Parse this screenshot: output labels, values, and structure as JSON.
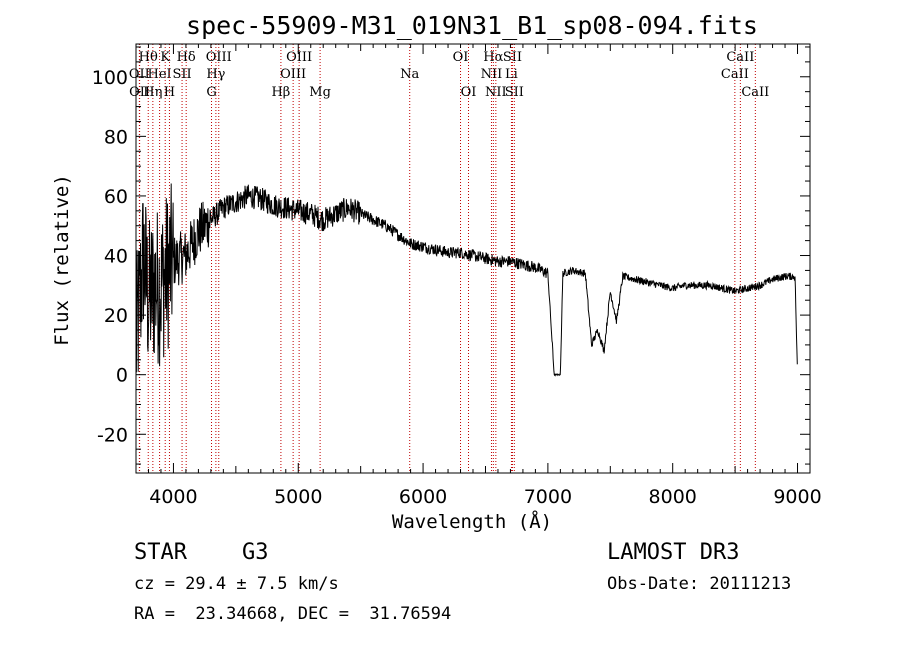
{
  "chart_data": {
    "type": "line",
    "title": "spec-55909-M31_019N31_B1_sp08-094.fits",
    "xlabel": "Wavelength (Å)",
    "ylabel": "Flux (relative)",
    "xlim": [
      3700,
      9100
    ],
    "ylim": [
      -33,
      111
    ],
    "xticks": [
      4000,
      5000,
      6000,
      7000,
      8000,
      9000
    ],
    "yticks": [
      -20,
      0,
      20,
      40,
      60,
      80,
      100
    ],
    "colors": {
      "spectrum": "#000000",
      "lines": "#c00000"
    },
    "spectrum_anchors": [
      [
        3700,
        10
      ],
      [
        3760,
        40
      ],
      [
        3800,
        25
      ],
      [
        3850,
        30
      ],
      [
        3900,
        30
      ],
      [
        3950,
        35
      ],
      [
        4000,
        38
      ],
      [
        4100,
        40
      ],
      [
        4200,
        48
      ],
      [
        4300,
        52
      ],
      [
        4400,
        56
      ],
      [
        4500,
        58
      ],
      [
        4600,
        60
      ],
      [
        4700,
        59
      ],
      [
        4800,
        57
      ],
      [
        4900,
        56
      ],
      [
        5000,
        55
      ],
      [
        5100,
        54
      ],
      [
        5200,
        52
      ],
      [
        5300,
        54
      ],
      [
        5400,
        56
      ],
      [
        5500,
        54
      ],
      [
        5600,
        52
      ],
      [
        5700,
        50
      ],
      [
        5800,
        47
      ],
      [
        5900,
        44
      ],
      [
        6000,
        43
      ],
      [
        6100,
        42
      ],
      [
        6200,
        41
      ],
      [
        6300,
        41
      ],
      [
        6400,
        40
      ],
      [
        6500,
        39
      ],
      [
        6600,
        38
      ],
      [
        6700,
        38
      ],
      [
        6800,
        37
      ],
      [
        6900,
        36
      ],
      [
        7000,
        34
      ],
      [
        7050,
        0
      ],
      [
        7100,
        0
      ],
      [
        7120,
        34
      ],
      [
        7200,
        35
      ],
      [
        7300,
        34
      ],
      [
        7350,
        10
      ],
      [
        7400,
        15
      ],
      [
        7450,
        8
      ],
      [
        7500,
        28
      ],
      [
        7550,
        18
      ],
      [
        7600,
        33
      ],
      [
        7700,
        32
      ],
      [
        7800,
        31
      ],
      [
        7900,
        30
      ],
      [
        8000,
        29
      ],
      [
        8100,
        30
      ],
      [
        8200,
        30
      ],
      [
        8300,
        30
      ],
      [
        8400,
        29
      ],
      [
        8500,
        28
      ],
      [
        8600,
        29
      ],
      [
        8700,
        30
      ],
      [
        8800,
        32
      ],
      [
        8900,
        33
      ],
      [
        8980,
        33
      ],
      [
        9000,
        0
      ]
    ],
    "spectral_lines": [
      {
        "label": "Hθ",
        "wavelength": 3798,
        "row": 1
      },
      {
        "label": "K",
        "wavelength": 3934,
        "row": 1
      },
      {
        "label": "Hδ",
        "wavelength": 4102,
        "row": 1
      },
      {
        "label": "OIII",
        "wavelength": 4363,
        "row": 1
      },
      {
        "label": "OIII",
        "wavelength": 5007,
        "row": 1
      },
      {
        "label": "OI",
        "wavelength": 6300,
        "row": 1
      },
      {
        "label": "Hα",
        "wavelength": 6563,
        "row": 1
      },
      {
        "label": "SII",
        "wavelength": 6716,
        "row": 1
      },
      {
        "label": "CaII",
        "wavelength": 8542,
        "row": 1
      },
      {
        "label": "OII",
        "wavelength": 3727,
        "row": 2
      },
      {
        "label": "HeI",
        "wavelength": 3889,
        "row": 2
      },
      {
        "label": "SII",
        "wavelength": 4069,
        "row": 2
      },
      {
        "label": "Hγ",
        "wavelength": 4340,
        "row": 2
      },
      {
        "label": "OIII",
        "wavelength": 4959,
        "row": 2
      },
      {
        "label": "Na",
        "wavelength": 5893,
        "row": 2
      },
      {
        "label": "NII",
        "wavelength": 6548,
        "row": 2
      },
      {
        "label": "Li",
        "wavelength": 6708,
        "row": 2
      },
      {
        "label": "CaII",
        "wavelength": 8498,
        "row": 2
      },
      {
        "label": "OII",
        "wavelength": 3729,
        "row": 3
      },
      {
        "label": "Hη",
        "wavelength": 3835,
        "row": 3
      },
      {
        "label": "H",
        "wavelength": 3968,
        "row": 3
      },
      {
        "label": "G",
        "wavelength": 4305,
        "row": 3
      },
      {
        "label": "Hβ",
        "wavelength": 4861,
        "row": 3
      },
      {
        "label": "Mg",
        "wavelength": 5175,
        "row": 3
      },
      {
        "label": "OI",
        "wavelength": 6364,
        "row": 3
      },
      {
        "label": "NII",
        "wavelength": 6583,
        "row": 3
      },
      {
        "label": "SII",
        "wavelength": 6731,
        "row": 3
      },
      {
        "label": "CaII",
        "wavelength": 8662,
        "row": 3
      }
    ]
  },
  "info": {
    "object_class": "STAR",
    "subclass": "G3",
    "survey": "LAMOST DR3",
    "redshift": "cz = 29.4 ± 7.5 km/s",
    "obs_date": "Obs-Date: 20111213",
    "coords": "RA =  23.34668, DEC =  31.76594"
  }
}
